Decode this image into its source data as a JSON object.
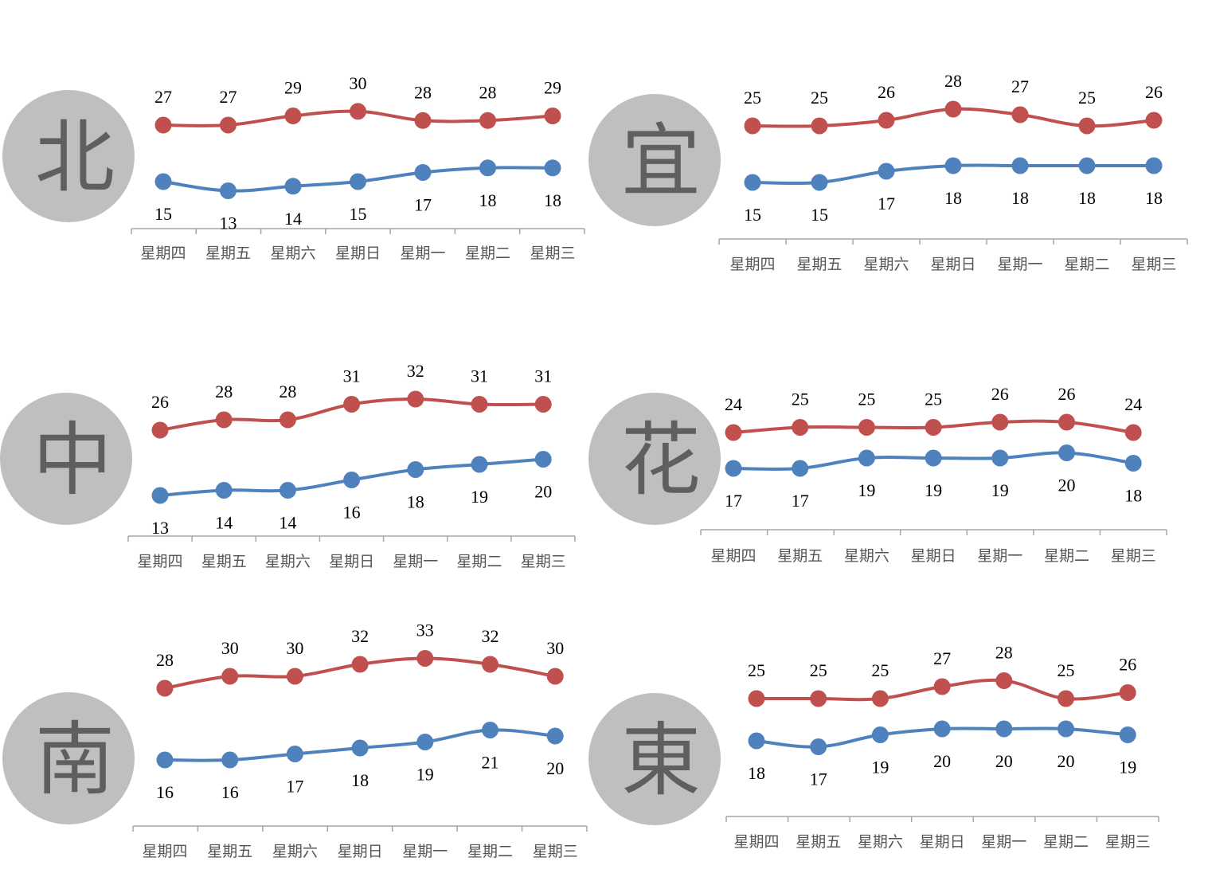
{
  "colors": {
    "high": "#c0504d",
    "low": "#4f81bd",
    "circle": "#bfbfbf",
    "region_text": "#5f5f5f",
    "axis": "#a6a6a6"
  },
  "chart_data": [
    {
      "type": "line",
      "region": "北",
      "categories": [
        "星期四",
        "星期五",
        "星期六",
        "星期日",
        "星期一",
        "星期二",
        "星期三"
      ],
      "series": [
        {
          "values": [
            27,
            27,
            29,
            30,
            28,
            28,
            29
          ]
        },
        {
          "values": [
            15,
            13,
            14,
            15,
            17,
            18,
            18
          ]
        }
      ]
    },
    {
      "type": "line",
      "region": "宜",
      "categories": [
        "星期四",
        "星期五",
        "星期六",
        "星期日",
        "星期一",
        "星期二",
        "星期三"
      ],
      "series": [
        {
          "values": [
            25,
            25,
            26,
            28,
            27,
            25,
            26
          ]
        },
        {
          "values": [
            15,
            15,
            17,
            18,
            18,
            18,
            18
          ]
        }
      ]
    },
    {
      "type": "line",
      "region": "中",
      "categories": [
        "星期四",
        "星期五",
        "星期六",
        "星期日",
        "星期一",
        "星期二",
        "星期三"
      ],
      "series": [
        {
          "values": [
            26,
            28,
            28,
            31,
            32,
            31,
            31
          ]
        },
        {
          "values": [
            13,
            14,
            14,
            16,
            18,
            19,
            20
          ]
        }
      ]
    },
    {
      "type": "line",
      "region": "花",
      "categories": [
        "星期四",
        "星期五",
        "星期六",
        "星期日",
        "星期一",
        "星期二",
        "星期三"
      ],
      "series": [
        {
          "values": [
            24,
            25,
            25,
            25,
            26,
            26,
            24
          ]
        },
        {
          "values": [
            17,
            17,
            19,
            19,
            19,
            20,
            18
          ]
        }
      ]
    },
    {
      "type": "line",
      "region": "南",
      "categories": [
        "星期四",
        "星期五",
        "星期六",
        "星期日",
        "星期一",
        "星期二",
        "星期三"
      ],
      "series": [
        {
          "values": [
            28,
            30,
            30,
            32,
            33,
            32,
            30
          ]
        },
        {
          "values": [
            16,
            16,
            17,
            18,
            19,
            21,
            20
          ]
        }
      ]
    },
    {
      "type": "line",
      "region": "東",
      "categories": [
        "星期四",
        "星期五",
        "星期六",
        "星期日",
        "星期一",
        "星期二",
        "星期三"
      ],
      "series": [
        {
          "values": [
            25,
            25,
            25,
            27,
            28,
            25,
            26
          ]
        },
        {
          "values": [
            18,
            17,
            19,
            20,
            20,
            20,
            19
          ]
        }
      ]
    }
  ]
}
